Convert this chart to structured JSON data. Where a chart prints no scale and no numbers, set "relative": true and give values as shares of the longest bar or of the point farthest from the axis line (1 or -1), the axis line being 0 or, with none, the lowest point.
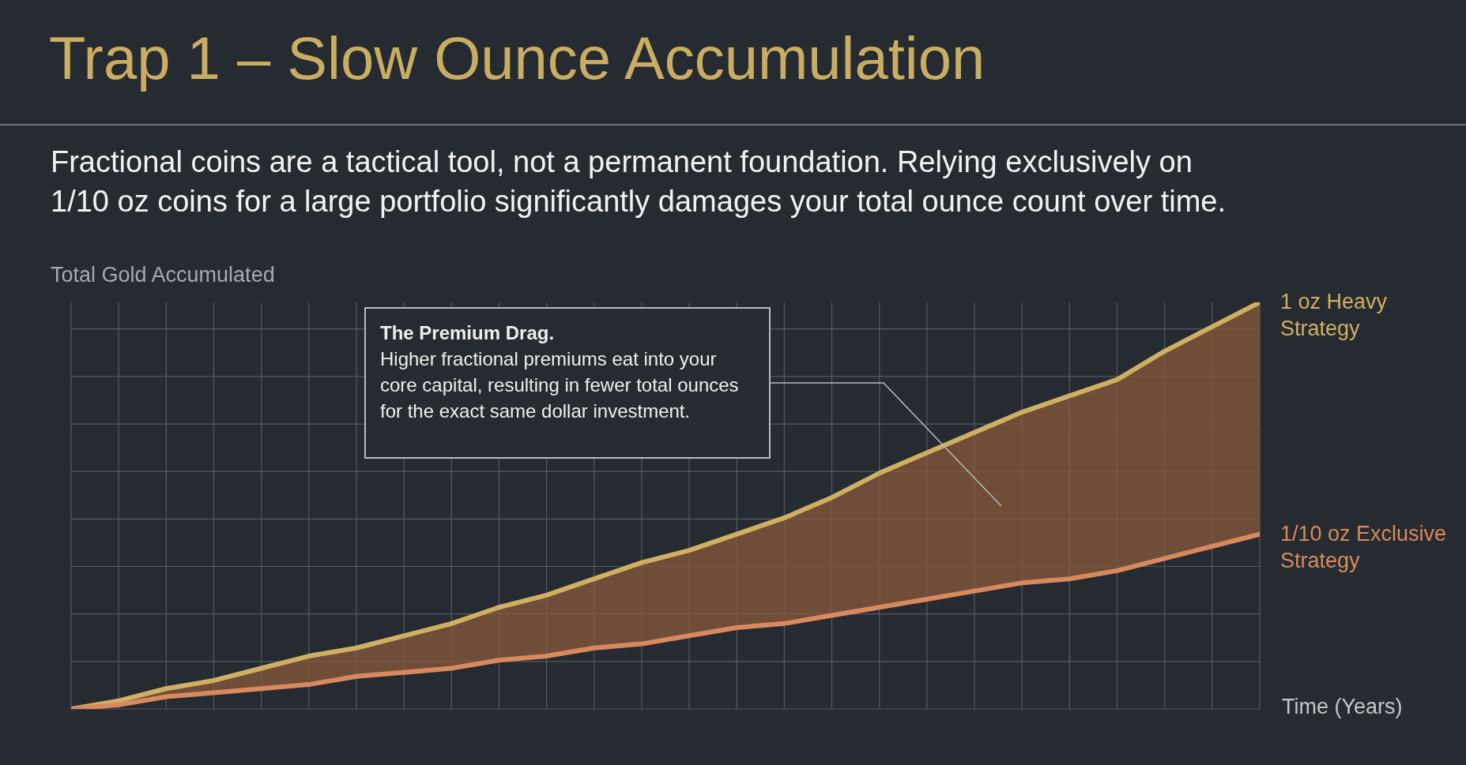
{
  "chart_data": {
    "type": "line",
    "title": "Trap 1 – Slow Ounce Accumulation",
    "subtitle": "Fractional coins are a tactical tool, not a permanent foundation. Relying exclusively on 1/10 oz coins for a large portfolio significantly damages your total ounce count over time.",
    "ylabel": "Total Gold Accumulated",
    "xlabel": "Time (Years)",
    "annotations": [
      "The Premium Drag.",
      "Higher fractional premiums eat into your core capital, resulting in fewer total ounces for the exact same dollar investment."
    ],
    "relative": true,
    "grid": true,
    "categories": [
      null,
      null,
      null,
      null,
      null,
      null,
      null,
      null,
      null,
      null,
      null,
      null,
      null,
      null,
      null,
      null,
      null,
      null,
      null,
      null,
      null,
      null,
      null,
      null,
      null,
      null
    ],
    "series": [
      {
        "name": "1 oz Heavy Strategy",
        "type": "area",
        "color": "#cfb062",
        "values": [
          0,
          0.02,
          0.05,
          0.07,
          0.1,
          0.13,
          0.15,
          0.18,
          0.21,
          0.25,
          0.28,
          0.32,
          0.36,
          0.39,
          0.43,
          0.47,
          0.52,
          0.58,
          0.63,
          0.68,
          0.73,
          0.77,
          0.81,
          0.88,
          0.94,
          1
        ]
      },
      {
        "name": "1/10 oz Exclusive Strategy",
        "color": "#d88a5e",
        "values": [
          0,
          0.01,
          0.03,
          0.04,
          0.05,
          0.06,
          0.08,
          0.09,
          0.1,
          0.12,
          0.13,
          0.15,
          0.16,
          0.18,
          0.2,
          0.21,
          0.23,
          0.25,
          0.27,
          0.29,
          0.31,
          0.32,
          0.34,
          0.37,
          0.4,
          0.43
        ]
      }
    ]
  }
}
